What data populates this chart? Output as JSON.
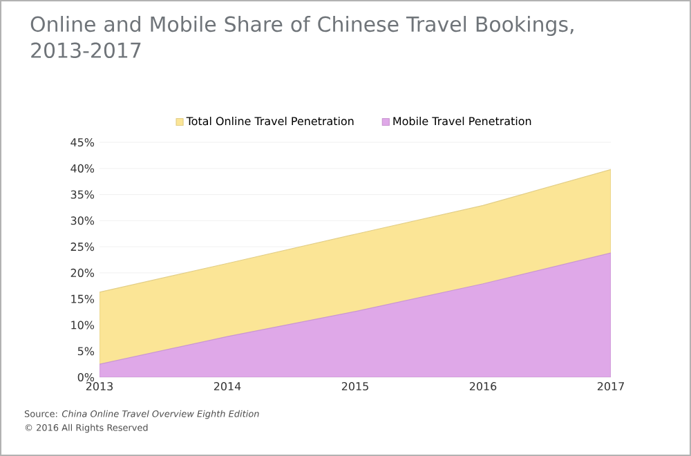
{
  "chart_data": {
    "type": "area",
    "title": "Online and Mobile Share of Chinese Travel Bookings, 2013-2017",
    "x": [
      2013,
      2014,
      2015,
      2016,
      2017
    ],
    "series": [
      {
        "name": "Total Online Travel Penetration",
        "color": "#fbe596",
        "values": [
          16.3,
          21.8,
          27.4,
          32.9,
          39.8
        ]
      },
      {
        "name": "Mobile Travel Penetration",
        "color": "#dfa8e8",
        "values": [
          2.5,
          7.8,
          12.6,
          17.9,
          23.8
        ]
      }
    ],
    "xlim": [
      2013,
      2017
    ],
    "xticks": [
      2013,
      2014,
      2015,
      2016,
      2017
    ],
    "ylim": [
      0,
      45
    ],
    "yticks": [
      {
        "value": 0,
        "label": "0%"
      },
      {
        "value": 5,
        "label": "5%"
      },
      {
        "value": 10,
        "label": "10%"
      },
      {
        "value": 15,
        "label": "15%"
      },
      {
        "value": 20,
        "label": "20%"
      },
      {
        "value": 25,
        "label": "25%"
      },
      {
        "value": 30,
        "label": "30%"
      },
      {
        "value": 35,
        "label": "35%"
      },
      {
        "value": 40,
        "label": "40%"
      },
      {
        "value": 45,
        "label": "45%"
      }
    ],
    "grid": "y",
    "legend": "top",
    "annotations": [
      "Source: *China Online Travel Overview Eighth Edition*",
      "© 2016 All Rights Reserved"
    ]
  }
}
